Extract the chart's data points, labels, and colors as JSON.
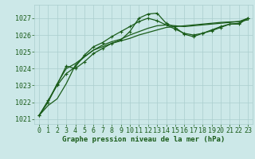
{
  "bg_color": "#cce8e8",
  "grid_color": "#aacece",
  "line_color": "#1a5c1a",
  "marker_color": "#1a5c1a",
  "xlabel": "Graphe pression niveau de la mer (hPa)",
  "xlabel_color": "#1a5c1a",
  "xlabel_fontsize": 6.5,
  "tick_color": "#1a5c1a",
  "tick_fontsize": 6.0,
  "ylim": [
    1020.7,
    1027.8
  ],
  "xlim": [
    -0.5,
    23.5
  ],
  "yticks": [
    1021,
    1022,
    1023,
    1024,
    1025,
    1026,
    1027
  ],
  "xticks": [
    0,
    1,
    2,
    3,
    4,
    5,
    6,
    7,
    8,
    9,
    10,
    11,
    12,
    13,
    14,
    15,
    16,
    17,
    18,
    19,
    20,
    21,
    22,
    23
  ],
  "series": [
    {
      "x": [
        0,
        1,
        2,
        3,
        4,
        5,
        6,
        7,
        8,
        9,
        10,
        11,
        12,
        13,
        14,
        15,
        16,
        17,
        18,
        19,
        20,
        21,
        22,
        23
      ],
      "y": [
        1021.2,
        1022.1,
        1023.0,
        1023.7,
        1024.1,
        1024.8,
        1025.3,
        1025.55,
        1025.9,
        1026.2,
        1026.5,
        1026.8,
        1027.0,
        1026.85,
        1026.6,
        1026.35,
        1026.1,
        1026.0,
        1026.1,
        1026.3,
        1026.5,
        1026.65,
        1026.7,
        1027.0
      ],
      "marker": true,
      "lw": 0.9
    },
    {
      "x": [
        0,
        1,
        2,
        3,
        4,
        5,
        6,
        7,
        8,
        9,
        10,
        11,
        12,
        13,
        14,
        15,
        16,
        17,
        18,
        19,
        20,
        21,
        22,
        23
      ],
      "y": [
        1021.2,
        1021.8,
        1022.2,
        1023.1,
        1024.2,
        1024.7,
        1025.1,
        1025.3,
        1025.5,
        1025.65,
        1025.8,
        1026.0,
        1026.15,
        1026.3,
        1026.45,
        1026.5,
        1026.55,
        1026.6,
        1026.65,
        1026.7,
        1026.75,
        1026.78,
        1026.8,
        1026.9
      ],
      "marker": false,
      "lw": 0.9
    },
    {
      "x": [
        0,
        1,
        2,
        3,
        4,
        5,
        6,
        7,
        8,
        9,
        10,
        11,
        12,
        13,
        14,
        15,
        16,
        17,
        18,
        19,
        20,
        21,
        22,
        23
      ],
      "y": [
        1021.2,
        1022.0,
        1023.05,
        1024.15,
        1024.0,
        1024.4,
        1024.9,
        1025.2,
        1025.5,
        1025.7,
        1026.2,
        1027.0,
        1027.25,
        1027.3,
        1026.7,
        1026.45,
        1026.05,
        1025.9,
        1026.1,
        1026.25,
        1026.45,
        1026.65,
        1026.65,
        1027.0
      ],
      "marker": true,
      "lw": 0.9
    },
    {
      "x": [
        0,
        1,
        2,
        3,
        4,
        5,
        6,
        7,
        8,
        9,
        10,
        11,
        12,
        13,
        14,
        15,
        16,
        17,
        18,
        19,
        20,
        21,
        22,
        23
      ],
      "y": [
        1021.2,
        1022.05,
        1023.1,
        1024.0,
        1024.3,
        1024.7,
        1025.1,
        1025.4,
        1025.6,
        1025.75,
        1026.0,
        1026.2,
        1026.4,
        1026.55,
        1026.6,
        1026.55,
        1026.5,
        1026.55,
        1026.6,
        1026.65,
        1026.7,
        1026.75,
        1026.8,
        1027.0
      ],
      "marker": false,
      "lw": 0.9
    }
  ]
}
